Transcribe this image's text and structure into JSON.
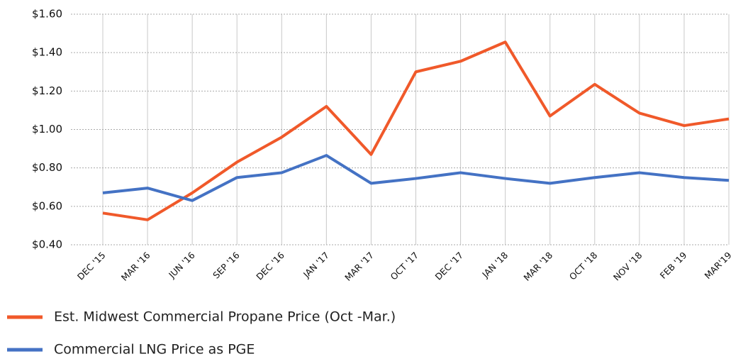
{
  "chart_data": {
    "type": "line",
    "categories": [
      "DEC '15",
      "MAR '16",
      "JUN '16",
      "SEP '16",
      "DEC '16",
      "JAN '17",
      "MAR '17",
      "OCT '17",
      "DEC '17",
      "JAN '18",
      "MAR '18",
      "OCT '18",
      "NOV '18",
      "FEB '19",
      "MAR'19"
    ],
    "series": [
      {
        "name": "Est. Midwest Commercial Propane Price (Oct -Mar.)",
        "color": "#f0592a",
        "values": [
          0.565,
          0.53,
          0.67,
          0.83,
          0.96,
          1.12,
          0.87,
          1.3,
          1.355,
          1.455,
          1.07,
          1.235,
          1.085,
          1.02,
          1.055
        ]
      },
      {
        "name": "Commercial LNG Price as PGE",
        "color": "#4472c4",
        "values": [
          0.67,
          0.695,
          0.63,
          0.75,
          0.775,
          0.865,
          0.72,
          0.745,
          0.775,
          0.745,
          0.72,
          0.75,
          0.775,
          0.75,
          0.735
        ]
      }
    ],
    "ylim": [
      0.4,
      1.6
    ],
    "yticks": [
      {
        "value": 0.4,
        "label": "$0.40"
      },
      {
        "value": 0.6,
        "label": "$0.60"
      },
      {
        "value": 0.8,
        "label": "$0.80"
      },
      {
        "value": 1.0,
        "label": "$1.00"
      },
      {
        "value": 1.2,
        "label": "$1.20"
      },
      {
        "value": 1.4,
        "label": "$1.40"
      },
      {
        "value": 1.6,
        "label": "$1.60"
      }
    ],
    "grid": true
  }
}
